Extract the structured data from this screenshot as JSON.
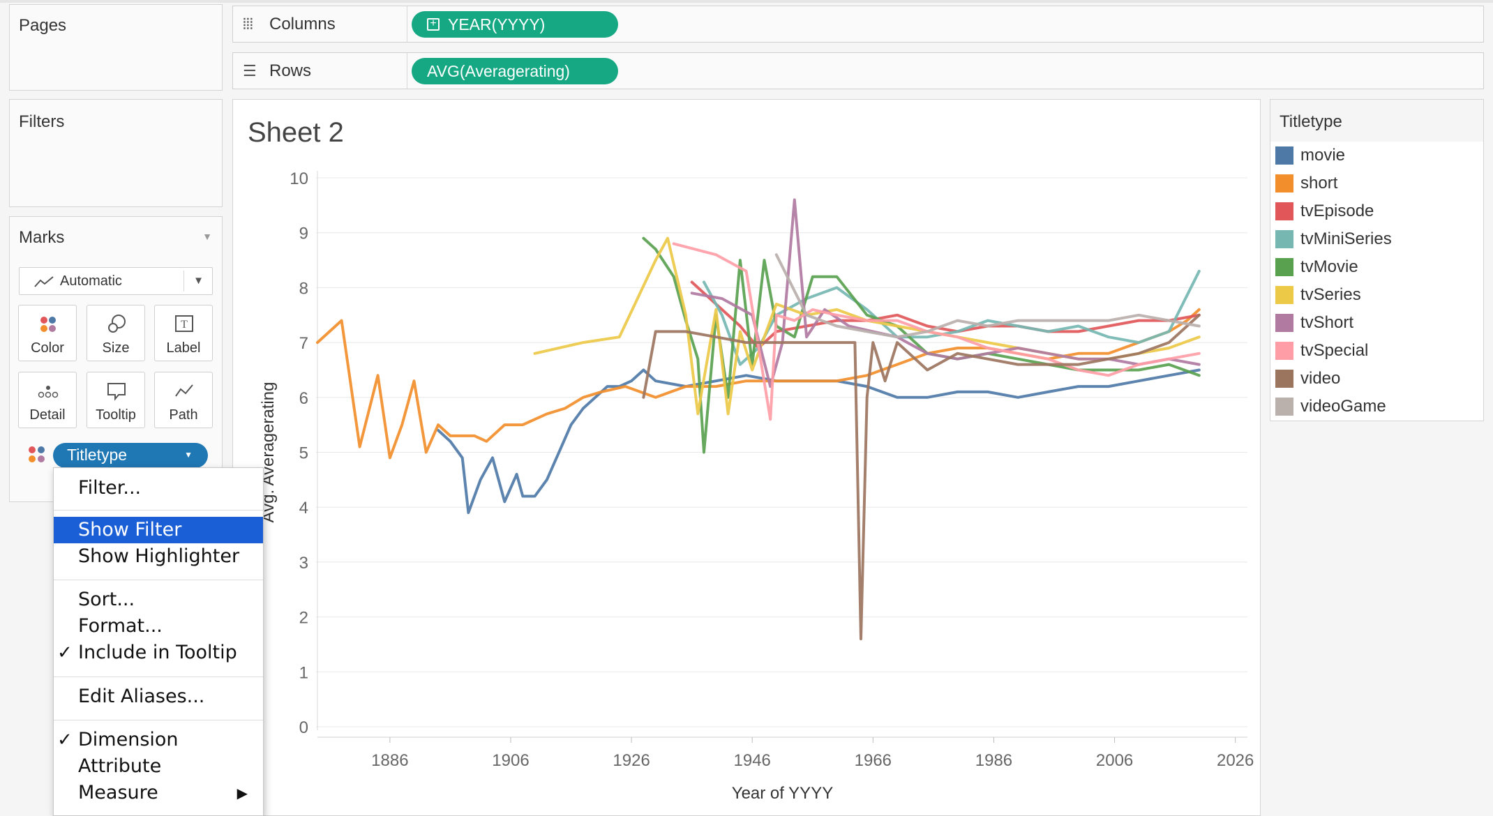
{
  "shelves": {
    "pages_title": "Pages",
    "filters_title": "Filters",
    "columns": {
      "label": "Columns",
      "pill": "YEAR(YYYY)"
    },
    "rows": {
      "label": "Rows",
      "pill": "AVG(Averagerating)"
    }
  },
  "marks": {
    "title": "Marks",
    "mark_type": "Automatic",
    "cards": [
      {
        "label": "Color",
        "icon": "color-icon"
      },
      {
        "label": "Size",
        "icon": "size-icon"
      },
      {
        "label": "Label",
        "icon": "label-icon"
      },
      {
        "label": "Detail",
        "icon": "detail-icon"
      },
      {
        "label": "Tooltip",
        "icon": "tooltip-icon"
      },
      {
        "label": "Path",
        "icon": "path-icon"
      }
    ],
    "field_pill": "Titletype"
  },
  "context_menu": {
    "items": [
      {
        "label": "Filter...",
        "checked": false
      },
      {
        "label": "Show Filter",
        "checked": false,
        "highlighted": true
      },
      {
        "label": "Show Highlighter",
        "checked": false
      },
      {
        "label": "Sort...",
        "checked": false
      },
      {
        "label": "Format...",
        "checked": false
      },
      {
        "label": "Include in Tooltip",
        "checked": true
      },
      {
        "label": "Edit Aliases...",
        "checked": false
      },
      {
        "label": "Dimension",
        "checked": true
      },
      {
        "label": "Attribute",
        "checked": false
      },
      {
        "label": "Measure",
        "checked": false,
        "submenu": true
      }
    ],
    "check_glyph": "✓",
    "submenu_glyph": "▶"
  },
  "sheet": {
    "title": "Sheet 2"
  },
  "legend": {
    "title": "Titletype",
    "items": [
      {
        "name": "movie",
        "color": "#4e79a7"
      },
      {
        "name": "short",
        "color": "#f28e2b"
      },
      {
        "name": "tvEpisode",
        "color": "#e15759"
      },
      {
        "name": "tvMiniSeries",
        "color": "#76b7b2"
      },
      {
        "name": "tvMovie",
        "color": "#59a14f"
      },
      {
        "name": "tvSeries",
        "color": "#edc948"
      },
      {
        "name": "tvShort",
        "color": "#b07aa1"
      },
      {
        "name": "tvSpecial",
        "color": "#ff9da7"
      },
      {
        "name": "video",
        "color": "#9c755f"
      },
      {
        "name": "videoGame",
        "color": "#bab0ac"
      }
    ]
  },
  "chart_data": {
    "type": "line",
    "xlabel": "Year of YYYY",
    "ylabel": "Avg. Averagerating",
    "x_ticks": [
      1886,
      1906,
      1926,
      1946,
      1966,
      1986,
      2006,
      2026
    ],
    "y_ticks": [
      0,
      1,
      2,
      3,
      4,
      5,
      6,
      7,
      8,
      9,
      10
    ],
    "xlim": [
      1874,
      2028
    ],
    "ylim": [
      0,
      10
    ],
    "grid": "horizontal",
    "series": [
      {
        "name": "movie",
        "points": [
          [
            1894,
            5.4
          ],
          [
            1896,
            5.2
          ],
          [
            1898,
            4.9
          ],
          [
            1899,
            3.9
          ],
          [
            1901,
            4.5
          ],
          [
            1903,
            4.9
          ],
          [
            1905,
            4.1
          ],
          [
            1907,
            4.6
          ],
          [
            1908,
            4.2
          ],
          [
            1910,
            4.2
          ],
          [
            1912,
            4.5
          ],
          [
            1914,
            5.0
          ],
          [
            1916,
            5.5
          ],
          [
            1918,
            5.8
          ],
          [
            1920,
            6.0
          ],
          [
            1922,
            6.2
          ],
          [
            1924,
            6.2
          ],
          [
            1926,
            6.3
          ],
          [
            1928,
            6.5
          ],
          [
            1930,
            6.3
          ],
          [
            1935,
            6.2
          ],
          [
            1940,
            6.3
          ],
          [
            1945,
            6.4
          ],
          [
            1950,
            6.3
          ],
          [
            1955,
            6.3
          ],
          [
            1960,
            6.3
          ],
          [
            1965,
            6.2
          ],
          [
            1970,
            6.0
          ],
          [
            1975,
            6.0
          ],
          [
            1980,
            6.1
          ],
          [
            1985,
            6.1
          ],
          [
            1990,
            6.0
          ],
          [
            1995,
            6.1
          ],
          [
            2000,
            6.2
          ],
          [
            2005,
            6.2
          ],
          [
            2010,
            6.3
          ],
          [
            2015,
            6.4
          ],
          [
            2020,
            6.5
          ]
        ]
      },
      {
        "name": "short",
        "points": [
          [
            1874,
            7.0
          ],
          [
            1878,
            7.4
          ],
          [
            1881,
            5.1
          ],
          [
            1884,
            6.4
          ],
          [
            1886,
            4.9
          ],
          [
            1888,
            5.5
          ],
          [
            1890,
            6.3
          ],
          [
            1892,
            5.0
          ],
          [
            1894,
            5.5
          ],
          [
            1896,
            5.3
          ],
          [
            1898,
            5.3
          ],
          [
            1900,
            5.3
          ],
          [
            1902,
            5.2
          ],
          [
            1905,
            5.5
          ],
          [
            1908,
            5.5
          ],
          [
            1912,
            5.7
          ],
          [
            1915,
            5.8
          ],
          [
            1918,
            6.0
          ],
          [
            1921,
            6.1
          ],
          [
            1925,
            6.2
          ],
          [
            1930,
            6.0
          ],
          [
            1935,
            6.2
          ],
          [
            1940,
            6.2
          ],
          [
            1945,
            6.3
          ],
          [
            1950,
            6.3
          ],
          [
            1955,
            6.3
          ],
          [
            1960,
            6.3
          ],
          [
            1965,
            6.4
          ],
          [
            1970,
            6.6
          ],
          [
            1975,
            6.8
          ],
          [
            1980,
            6.9
          ],
          [
            1985,
            6.9
          ],
          [
            1990,
            6.8
          ],
          [
            1995,
            6.7
          ],
          [
            2000,
            6.8
          ],
          [
            2005,
            6.8
          ],
          [
            2010,
            7.0
          ],
          [
            2015,
            7.2
          ],
          [
            2018,
            7.4
          ],
          [
            2020,
            7.6
          ]
        ]
      },
      {
        "name": "tvEpisode",
        "points": [
          [
            1936,
            8.1
          ],
          [
            1940,
            7.7
          ],
          [
            1944,
            7.3
          ],
          [
            1947,
            6.9
          ],
          [
            1950,
            7.2
          ],
          [
            1955,
            7.3
          ],
          [
            1960,
            7.4
          ],
          [
            1965,
            7.4
          ],
          [
            1970,
            7.5
          ],
          [
            1975,
            7.3
          ],
          [
            1980,
            7.2
          ],
          [
            1985,
            7.3
          ],
          [
            1990,
            7.3
          ],
          [
            1995,
            7.2
          ],
          [
            2000,
            7.2
          ],
          [
            2005,
            7.3
          ],
          [
            2010,
            7.4
          ],
          [
            2015,
            7.4
          ],
          [
            2020,
            7.5
          ]
        ]
      },
      {
        "name": "tvMiniSeries",
        "points": [
          [
            1938,
            8.1
          ],
          [
            1941,
            7.5
          ],
          [
            1944,
            6.6
          ],
          [
            1947,
            6.9
          ],
          [
            1950,
            7.5
          ],
          [
            1955,
            7.8
          ],
          [
            1960,
            8.0
          ],
          [
            1965,
            7.6
          ],
          [
            1970,
            7.1
          ],
          [
            1975,
            7.1
          ],
          [
            1980,
            7.2
          ],
          [
            1985,
            7.4
          ],
          [
            1990,
            7.3
          ],
          [
            1995,
            7.2
          ],
          [
            2000,
            7.3
          ],
          [
            2005,
            7.1
          ],
          [
            2010,
            7.0
          ],
          [
            2015,
            7.2
          ],
          [
            2020,
            8.3
          ]
        ]
      },
      {
        "name": "tvMovie",
        "points": [
          [
            1928,
            8.9
          ],
          [
            1930,
            8.7
          ],
          [
            1933,
            8.2
          ],
          [
            1935,
            7.4
          ],
          [
            1937,
            6.7
          ],
          [
            1938,
            5.0
          ],
          [
            1940,
            7.5
          ],
          [
            1942,
            6.0
          ],
          [
            1944,
            8.5
          ],
          [
            1946,
            6.6
          ],
          [
            1948,
            8.5
          ],
          [
            1950,
            7.3
          ],
          [
            1953,
            7.1
          ],
          [
            1956,
            8.2
          ],
          [
            1960,
            8.2
          ],
          [
            1965,
            7.5
          ],
          [
            1970,
            7.3
          ],
          [
            1975,
            6.8
          ],
          [
            1980,
            6.7
          ],
          [
            1985,
            6.8
          ],
          [
            1990,
            6.7
          ],
          [
            1995,
            6.6
          ],
          [
            2000,
            6.5
          ],
          [
            2005,
            6.5
          ],
          [
            2010,
            6.5
          ],
          [
            2015,
            6.6
          ],
          [
            2020,
            6.4
          ]
        ]
      },
      {
        "name": "tvSeries",
        "points": [
          [
            1910,
            6.8
          ],
          [
            1918,
            7.0
          ],
          [
            1924,
            7.1
          ],
          [
            1930,
            8.5
          ],
          [
            1932,
            8.9
          ],
          [
            1935,
            7.5
          ],
          [
            1937,
            5.7
          ],
          [
            1940,
            7.6
          ],
          [
            1942,
            5.7
          ],
          [
            1944,
            7.2
          ],
          [
            1946,
            6.5
          ],
          [
            1950,
            7.7
          ],
          [
            1955,
            7.5
          ],
          [
            1960,
            7.6
          ],
          [
            1965,
            7.4
          ],
          [
            1970,
            7.3
          ],
          [
            1975,
            7.2
          ],
          [
            1980,
            7.1
          ],
          [
            1985,
            7.0
          ],
          [
            1990,
            6.9
          ],
          [
            1995,
            6.8
          ],
          [
            2000,
            6.7
          ],
          [
            2005,
            6.7
          ],
          [
            2010,
            6.8
          ],
          [
            2015,
            6.9
          ],
          [
            2020,
            7.1
          ]
        ]
      },
      {
        "name": "tvShort",
        "points": [
          [
            1936,
            7.9
          ],
          [
            1941,
            7.8
          ],
          [
            1946,
            7.5
          ],
          [
            1949,
            6.2
          ],
          [
            1951,
            7.0
          ],
          [
            1953,
            9.6
          ],
          [
            1955,
            7.1
          ],
          [
            1958,
            7.6
          ],
          [
            1962,
            7.3
          ],
          [
            1966,
            7.2
          ],
          [
            1970,
            7.1
          ],
          [
            1975,
            6.8
          ],
          [
            1980,
            6.7
          ],
          [
            1985,
            6.8
          ],
          [
            1990,
            6.9
          ],
          [
            1995,
            6.8
          ],
          [
            2000,
            6.7
          ],
          [
            2005,
            6.7
          ],
          [
            2010,
            6.6
          ],
          [
            2015,
            6.7
          ],
          [
            2020,
            6.6
          ]
        ]
      },
      {
        "name": "tvSpecial",
        "points": [
          [
            1933,
            8.8
          ],
          [
            1940,
            8.6
          ],
          [
            1945,
            8.3
          ],
          [
            1949,
            5.6
          ],
          [
            1950,
            7.5
          ],
          [
            1953,
            7.4
          ],
          [
            1956,
            7.6
          ],
          [
            1960,
            7.5
          ],
          [
            1965,
            7.4
          ],
          [
            1970,
            7.4
          ],
          [
            1975,
            7.2
          ],
          [
            1980,
            7.1
          ],
          [
            1985,
            6.9
          ],
          [
            1990,
            6.8
          ],
          [
            1995,
            6.7
          ],
          [
            2000,
            6.5
          ],
          [
            2005,
            6.4
          ],
          [
            2010,
            6.6
          ],
          [
            2015,
            6.7
          ],
          [
            2020,
            6.8
          ]
        ]
      },
      {
        "name": "video",
        "points": [
          [
            1928,
            6.0
          ],
          [
            1930,
            7.2
          ],
          [
            1935,
            7.2
          ],
          [
            1940,
            7.1
          ],
          [
            1945,
            7.0
          ],
          [
            1950,
            7.0
          ],
          [
            1955,
            7.0
          ],
          [
            1960,
            7.0
          ],
          [
            1963,
            7.0
          ],
          [
            1964,
            1.6
          ],
          [
            1965,
            6.0
          ],
          [
            1966,
            7.0
          ],
          [
            1968,
            6.3
          ],
          [
            1970,
            7.0
          ],
          [
            1975,
            6.5
          ],
          [
            1980,
            6.8
          ],
          [
            1985,
            6.7
          ],
          [
            1990,
            6.6
          ],
          [
            1995,
            6.6
          ],
          [
            2000,
            6.6
          ],
          [
            2005,
            6.7
          ],
          [
            2010,
            6.8
          ],
          [
            2015,
            7.0
          ],
          [
            2020,
            7.5
          ]
        ]
      },
      {
        "name": "videoGame",
        "points": [
          [
            1950,
            8.6
          ],
          [
            1955,
            7.5
          ],
          [
            1960,
            7.3
          ],
          [
            1965,
            7.2
          ],
          [
            1970,
            7.1
          ],
          [
            1975,
            7.2
          ],
          [
            1980,
            7.4
          ],
          [
            1985,
            7.3
          ],
          [
            1990,
            7.4
          ],
          [
            1995,
            7.4
          ],
          [
            2000,
            7.4
          ],
          [
            2005,
            7.4
          ],
          [
            2010,
            7.5
          ],
          [
            2015,
            7.4
          ],
          [
            2020,
            7.3
          ]
        ]
      }
    ]
  }
}
